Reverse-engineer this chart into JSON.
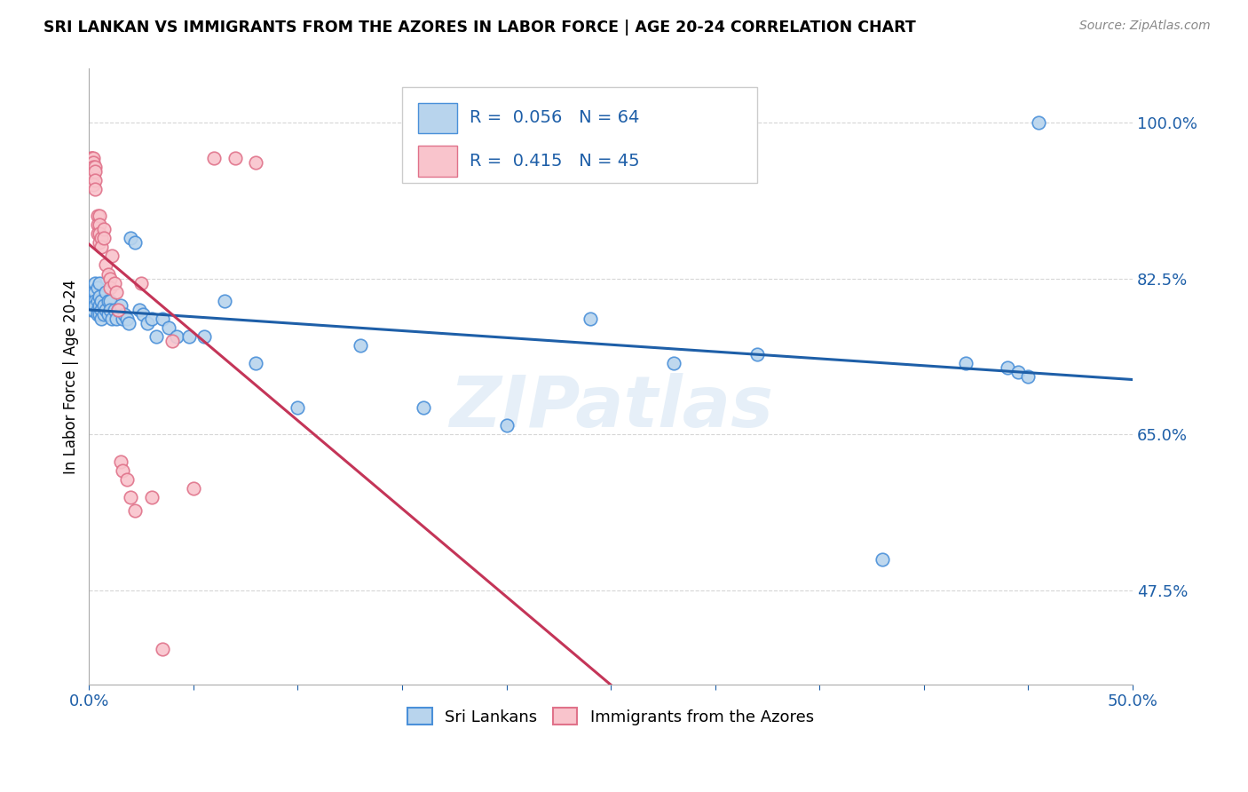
{
  "title": "SRI LANKAN VS IMMIGRANTS FROM THE AZORES IN LABOR FORCE | AGE 20-24 CORRELATION CHART",
  "source": "Source: ZipAtlas.com",
  "ylabel": "In Labor Force | Age 20-24",
  "xlim": [
    0.0,
    0.5
  ],
  "ylim": [
    0.37,
    1.06
  ],
  "xticks": [
    0.0,
    0.05,
    0.1,
    0.15,
    0.2,
    0.25,
    0.3,
    0.35,
    0.4,
    0.45,
    0.5
  ],
  "yticks": [
    0.475,
    0.65,
    0.825,
    1.0
  ],
  "yticklabels": [
    "47.5%",
    "65.0%",
    "82.5%",
    "100.0%"
  ],
  "blue_R": 0.056,
  "blue_N": 64,
  "pink_R": 0.415,
  "pink_N": 45,
  "blue_color": "#b8d4ed",
  "blue_edge": "#4a90d9",
  "pink_color": "#f9c4cc",
  "pink_edge": "#e0728a",
  "blue_line_color": "#1e5fa8",
  "pink_line_color": "#c43558",
  "legend_label_blue": "Sri Lankans",
  "legend_label_pink": "Immigrants from the Azores",
  "watermark": "ZIPatlas",
  "blue_x": [
    0.001,
    0.001,
    0.002,
    0.002,
    0.002,
    0.003,
    0.003,
    0.003,
    0.003,
    0.004,
    0.004,
    0.004,
    0.004,
    0.005,
    0.005,
    0.005,
    0.005,
    0.006,
    0.006,
    0.006,
    0.007,
    0.007,
    0.008,
    0.008,
    0.009,
    0.009,
    0.01,
    0.01,
    0.011,
    0.012,
    0.013,
    0.014,
    0.015,
    0.016,
    0.017,
    0.018,
    0.019,
    0.02,
    0.022,
    0.024,
    0.026,
    0.028,
    0.03,
    0.032,
    0.035,
    0.038,
    0.042,
    0.048,
    0.055,
    0.065,
    0.08,
    0.1,
    0.13,
    0.16,
    0.2,
    0.24,
    0.28,
    0.32,
    0.38,
    0.42,
    0.44,
    0.445,
    0.45,
    0.455
  ],
  "blue_y": [
    0.795,
    0.79,
    0.81,
    0.8,
    0.79,
    0.82,
    0.81,
    0.8,
    0.795,
    0.815,
    0.8,
    0.79,
    0.785,
    0.82,
    0.805,
    0.795,
    0.785,
    0.8,
    0.79,
    0.78,
    0.795,
    0.785,
    0.81,
    0.79,
    0.8,
    0.785,
    0.8,
    0.79,
    0.78,
    0.79,
    0.78,
    0.79,
    0.795,
    0.78,
    0.785,
    0.78,
    0.775,
    0.87,
    0.865,
    0.79,
    0.785,
    0.775,
    0.78,
    0.76,
    0.78,
    0.77,
    0.76,
    0.76,
    0.76,
    0.8,
    0.73,
    0.68,
    0.75,
    0.68,
    0.66,
    0.78,
    0.73,
    0.74,
    0.51,
    0.73,
    0.725,
    0.72,
    0.715,
    1.0
  ],
  "pink_x": [
    0.001,
    0.001,
    0.001,
    0.001,
    0.002,
    0.002,
    0.002,
    0.002,
    0.002,
    0.003,
    0.003,
    0.003,
    0.003,
    0.004,
    0.004,
    0.004,
    0.005,
    0.005,
    0.005,
    0.005,
    0.006,
    0.006,
    0.007,
    0.007,
    0.008,
    0.009,
    0.01,
    0.01,
    0.011,
    0.012,
    0.013,
    0.014,
    0.015,
    0.016,
    0.018,
    0.02,
    0.022,
    0.025,
    0.03,
    0.035,
    0.04,
    0.05,
    0.06,
    0.07,
    0.08
  ],
  "pink_y": [
    0.96,
    0.96,
    0.955,
    0.95,
    0.96,
    0.955,
    0.95,
    0.94,
    0.93,
    0.95,
    0.945,
    0.935,
    0.925,
    0.895,
    0.885,
    0.875,
    0.895,
    0.885,
    0.875,
    0.865,
    0.87,
    0.86,
    0.88,
    0.87,
    0.84,
    0.83,
    0.825,
    0.815,
    0.85,
    0.82,
    0.81,
    0.79,
    0.62,
    0.61,
    0.6,
    0.58,
    0.565,
    0.82,
    0.58,
    0.41,
    0.755,
    0.59,
    0.96,
    0.96,
    0.955
  ]
}
